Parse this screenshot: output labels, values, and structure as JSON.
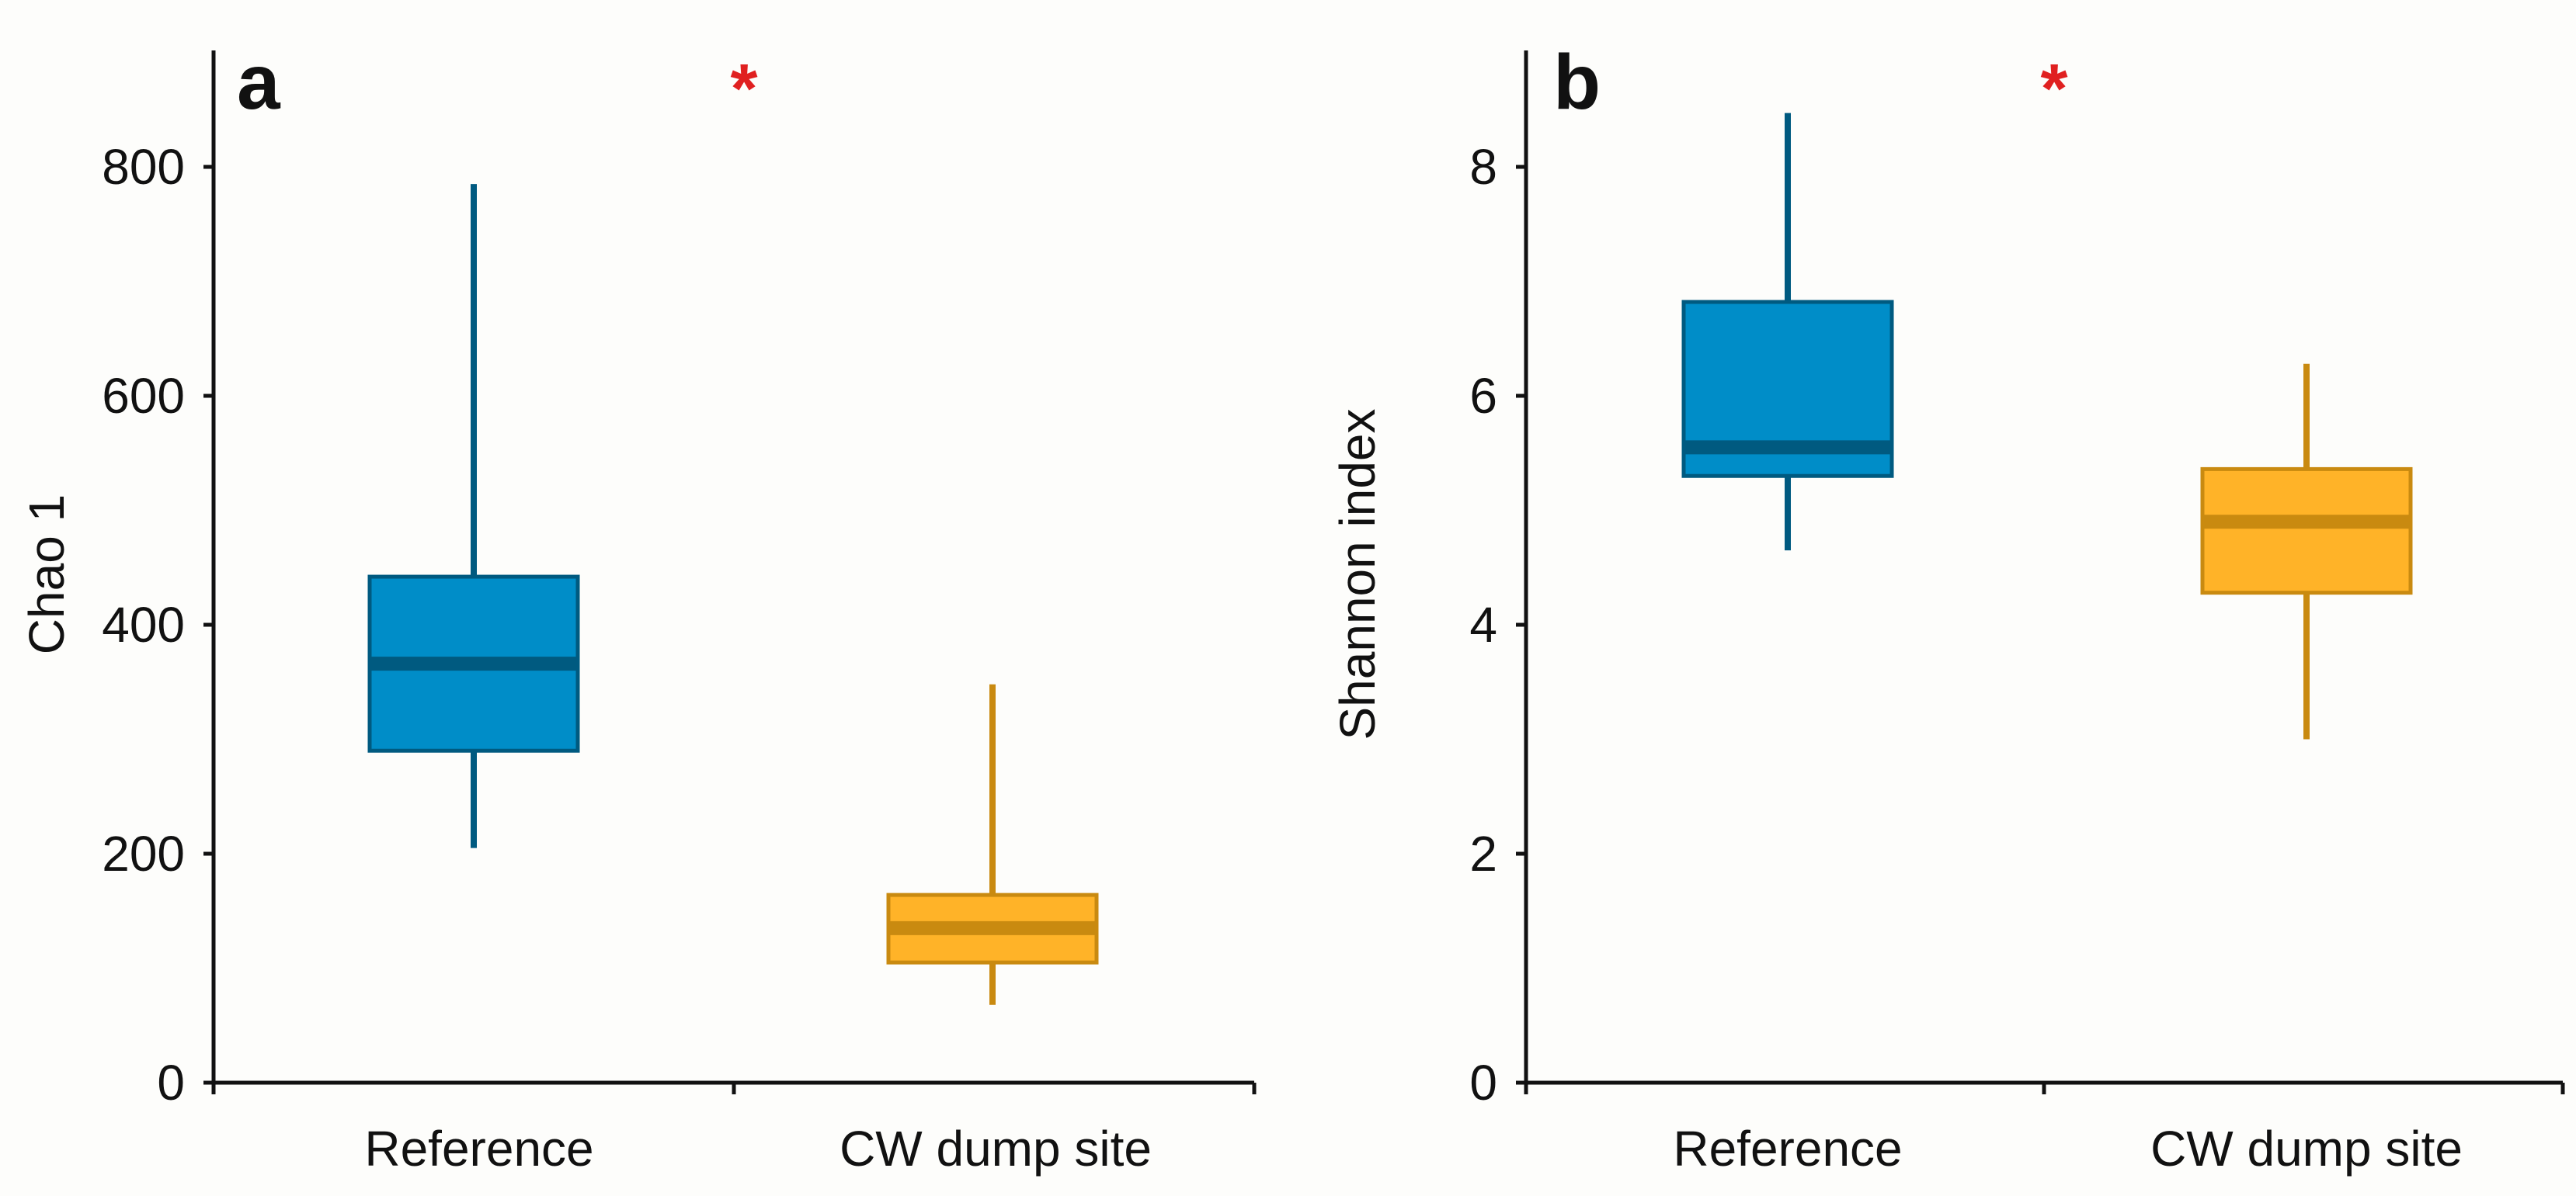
{
  "chart_data": [
    {
      "type": "box",
      "panel_label": "a",
      "significance_marker": "*",
      "ylabel": "Chao 1",
      "xlabel": "",
      "ylim": [
        0,
        900
      ],
      "yticks": [
        0,
        200,
        400,
        600,
        800
      ],
      "categories": [
        "Reference",
        "CW dump site"
      ],
      "boxes": [
        {
          "name": "Reference",
          "whisker_low": 205,
          "q1": 290,
          "median": 366,
          "q3": 442,
          "whisker_high": 785,
          "fill": "#008dc8",
          "edge": "#005a80"
        },
        {
          "name": "CW dump site",
          "whisker_low": 68,
          "q1": 105,
          "median": 135,
          "q3": 164,
          "whisker_high": 348,
          "fill": "#ffb328",
          "edge": "#c98a10"
        }
      ]
    },
    {
      "type": "box",
      "panel_label": "b",
      "significance_marker": "*",
      "ylabel": "Shannon index",
      "xlabel": "",
      "ylim": [
        0,
        9
      ],
      "yticks": [
        0,
        2,
        4,
        6,
        8
      ],
      "categories": [
        "Reference",
        "CW dump site"
      ],
      "boxes": [
        {
          "name": "Reference",
          "whisker_low": 4.65,
          "q1": 5.3,
          "median": 5.55,
          "q3": 6.82,
          "whisker_high": 8.47,
          "fill": "#008dc8",
          "edge": "#005a80"
        },
        {
          "name": "CW dump site",
          "whisker_low": 3.0,
          "q1": 4.28,
          "median": 4.9,
          "q3": 5.36,
          "whisker_high": 6.28,
          "fill": "#ffb328",
          "edge": "#c98a10"
        }
      ]
    }
  ],
  "colors": {
    "significance": "#e02020",
    "axis": "#111111"
  }
}
